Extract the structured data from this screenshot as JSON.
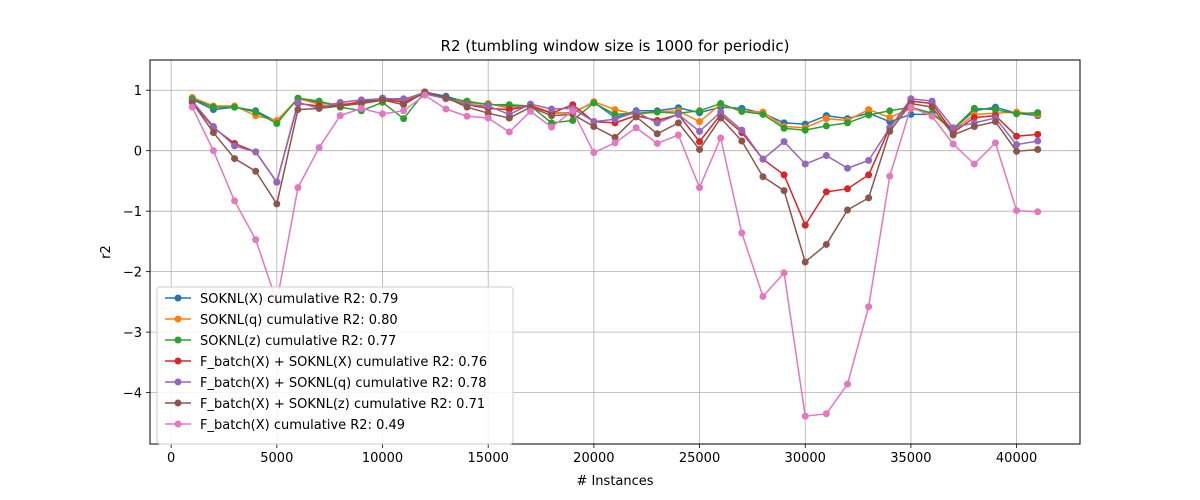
{
  "chart_data": {
    "type": "line",
    "title": "R2 (tumbling window size is 1000 for periodic)",
    "xlabel": "# Instances",
    "ylabel": "r2",
    "xlim": [
      -1000,
      43000
    ],
    "ylim": [
      -4.85,
      1.5
    ],
    "xticks": [
      0,
      5000,
      10000,
      15000,
      20000,
      25000,
      30000,
      35000,
      40000
    ],
    "yticks": [
      -4,
      -3,
      -2,
      -1,
      0,
      1
    ],
    "grid": true,
    "legend_position": "lower-left",
    "x": [
      1000,
      2000,
      3000,
      4000,
      5000,
      6000,
      7000,
      8000,
      9000,
      10000,
      11000,
      12000,
      13000,
      14000,
      15000,
      16000,
      17000,
      18000,
      19000,
      20000,
      21000,
      22000,
      23000,
      24000,
      25000,
      26000,
      27000,
      28000,
      29000,
      30000,
      31000,
      32000,
      33000,
      34000,
      35000,
      36000,
      37000,
      38000,
      39000,
      40000,
      41000
    ],
    "series": [
      {
        "name": "SOKNL(X) cumulative R2: 0.79",
        "color": "#1f77b4",
        "values": [
          0.85,
          0.68,
          0.72,
          0.66,
          0.48,
          0.86,
          0.8,
          0.76,
          0.79,
          0.87,
          0.84,
          0.97,
          0.9,
          0.8,
          0.77,
          0.74,
          0.74,
          0.62,
          0.63,
          0.8,
          0.55,
          0.66,
          0.66,
          0.71,
          0.63,
          0.72,
          0.7,
          0.62,
          0.46,
          0.44,
          0.58,
          0.53,
          0.62,
          0.48,
          0.6,
          0.6,
          0.36,
          0.66,
          0.72,
          0.62,
          0.58
        ]
      },
      {
        "name": "SOKNL(q) cumulative R2: 0.80",
        "color": "#ff7f0e",
        "values": [
          0.88,
          0.74,
          0.74,
          0.58,
          0.5,
          0.86,
          0.77,
          0.78,
          0.78,
          0.83,
          0.82,
          0.97,
          0.86,
          0.78,
          0.78,
          0.7,
          0.75,
          0.63,
          0.62,
          0.81,
          0.68,
          0.6,
          0.64,
          0.66,
          0.48,
          0.77,
          0.65,
          0.64,
          0.4,
          0.38,
          0.53,
          0.5,
          0.68,
          0.55,
          0.7,
          0.61,
          0.33,
          0.6,
          0.62,
          0.64,
          0.6
        ]
      },
      {
        "name": "SOKNL(z) cumulative R2: 0.77",
        "color": "#2ca02c",
        "values": [
          0.86,
          0.72,
          0.72,
          0.64,
          0.45,
          0.87,
          0.82,
          0.72,
          0.66,
          0.8,
          0.53,
          0.97,
          0.87,
          0.82,
          0.76,
          0.76,
          0.74,
          0.46,
          0.5,
          0.79,
          0.6,
          0.62,
          0.64,
          0.62,
          0.66,
          0.78,
          0.65,
          0.6,
          0.37,
          0.34,
          0.41,
          0.46,
          0.59,
          0.66,
          0.72,
          0.62,
          0.36,
          0.7,
          0.68,
          0.61,
          0.63
        ]
      },
      {
        "name": "F_batch(X) + SOKNL(X) cumulative R2: 0.76",
        "color": "#d62728",
        "values": [
          0.8,
          0.38,
          0.12,
          -0.02,
          -0.52,
          0.78,
          0.74,
          0.74,
          0.82,
          0.86,
          0.8,
          0.95,
          0.86,
          0.76,
          0.7,
          0.68,
          0.74,
          0.62,
          0.76,
          0.48,
          0.46,
          0.58,
          0.5,
          0.6,
          0.15,
          0.6,
          0.3,
          -0.14,
          -0.4,
          -1.23,
          -0.68,
          -0.63,
          -0.4,
          0.38,
          0.82,
          0.78,
          0.3,
          0.55,
          0.58,
          0.24,
          0.27
        ]
      },
      {
        "name": "F_batch(X) + SOKNL(q) cumulative R2: 0.78",
        "color": "#9467bd",
        "values": [
          0.82,
          0.4,
          0.08,
          -0.02,
          -0.52,
          0.8,
          0.7,
          0.8,
          0.84,
          0.86,
          0.86,
          0.94,
          0.86,
          0.76,
          0.74,
          0.6,
          0.77,
          0.69,
          0.7,
          0.48,
          0.52,
          0.64,
          0.46,
          0.6,
          0.32,
          0.64,
          0.34,
          -0.14,
          0.15,
          -0.22,
          -0.08,
          -0.29,
          -0.16,
          0.38,
          0.86,
          0.82,
          0.38,
          0.46,
          0.54,
          0.1,
          0.16
        ]
      },
      {
        "name": "F_batch(X) + SOKNL(z) cumulative R2: 0.71",
        "color": "#8c564b",
        "values": [
          0.8,
          0.3,
          -0.13,
          -0.34,
          -0.88,
          0.68,
          0.7,
          0.74,
          0.78,
          0.84,
          0.76,
          0.97,
          0.88,
          0.72,
          0.62,
          0.54,
          0.72,
          0.58,
          0.6,
          0.4,
          0.22,
          0.56,
          0.28,
          0.46,
          0.02,
          0.54,
          0.16,
          -0.43,
          -0.66,
          -1.84,
          -1.55,
          -0.98,
          -0.78,
          0.32,
          0.78,
          0.72,
          0.26,
          0.4,
          0.48,
          -0.01,
          0.02
        ]
      },
      {
        "name": "F_batch(X) cumulative R2: 0.49",
        "color": "#e377c2",
        "values": [
          0.72,
          0.0,
          -0.83,
          -1.47,
          -2.5,
          -0.61,
          0.05,
          0.58,
          0.7,
          0.61,
          0.66,
          0.92,
          0.69,
          0.57,
          0.54,
          0.31,
          0.65,
          0.39,
          0.66,
          -0.03,
          0.13,
          0.38,
          0.12,
          0.26,
          -0.61,
          0.21,
          -1.36,
          -2.41,
          -2.02,
          -4.39,
          -4.35,
          -3.86,
          -2.58,
          -0.42,
          0.72,
          0.57,
          0.11,
          -0.22,
          0.13,
          -0.99,
          -1.01
        ]
      }
    ]
  }
}
